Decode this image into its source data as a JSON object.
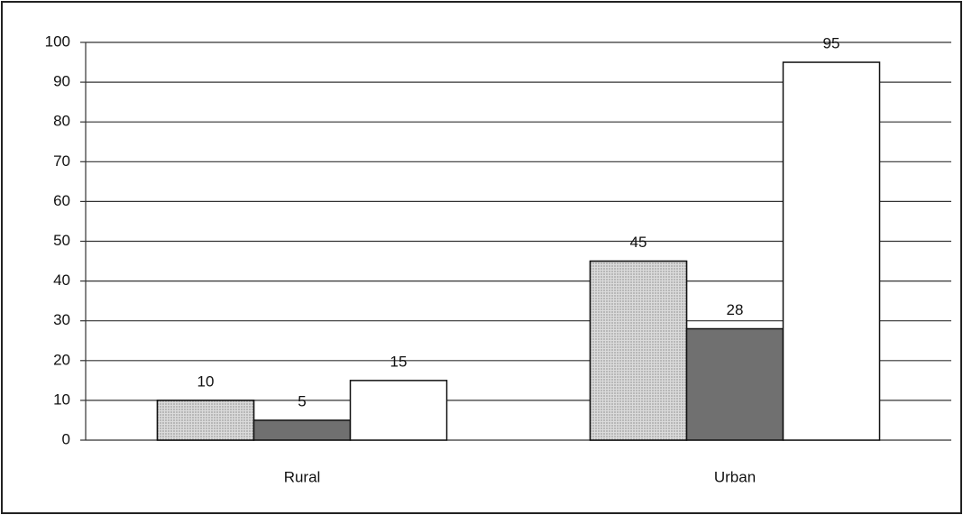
{
  "chart_data": {
    "type": "bar",
    "categories": [
      "Rural",
      "Urban"
    ],
    "series": [
      {
        "color": "#c4c4c4",
        "values": [
          10,
          45
        ]
      },
      {
        "color": "#707070",
        "values": [
          5,
          28
        ]
      },
      {
        "color": "#ffffff",
        "values": [
          15,
          95
        ]
      }
    ],
    "ylim": [
      0,
      100
    ],
    "yticks": [
      0,
      10,
      20,
      30,
      40,
      50,
      60,
      70,
      80,
      90,
      100
    ],
    "grid": true
  }
}
